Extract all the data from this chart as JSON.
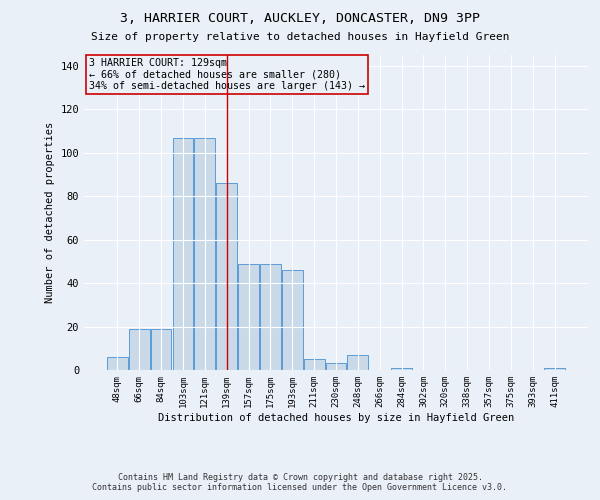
{
  "title1": "3, HARRIER COURT, AUCKLEY, DONCASTER, DN9 3PP",
  "title2": "Size of property relative to detached houses in Hayfield Green",
  "xlabel": "Distribution of detached houses by size in Hayfield Green",
  "ylabel": "Number of detached properties",
  "bar_labels": [
    "48sqm",
    "66sqm",
    "84sqm",
    "103sqm",
    "121sqm",
    "139sqm",
    "157sqm",
    "175sqm",
    "193sqm",
    "211sqm",
    "230sqm",
    "248sqm",
    "266sqm",
    "284sqm",
    "302sqm",
    "320sqm",
    "338sqm",
    "357sqm",
    "375sqm",
    "393sqm",
    "411sqm"
  ],
  "bar_values": [
    6,
    19,
    19,
    107,
    107,
    86,
    49,
    49,
    46,
    5,
    3,
    7,
    0,
    1,
    0,
    0,
    0,
    0,
    0,
    0,
    1
  ],
  "bar_color": "#c9d9e8",
  "bar_edge_color": "#5b9bd5",
  "vline_x": 5.0,
  "vline_color": "#cc0000",
  "annotation_text": "3 HARRIER COURT: 129sqm\n← 66% of detached houses are smaller (280)\n34% of semi-detached houses are larger (143) →",
  "ylim": [
    0,
    145
  ],
  "yticks": [
    0,
    20,
    40,
    60,
    80,
    100,
    120,
    140
  ],
  "background_color": "#eaf0f8",
  "grid_color": "#ffffff",
  "footer1": "Contains HM Land Registry data © Crown copyright and database right 2025.",
  "footer2": "Contains public sector information licensed under the Open Government Licence v3.0."
}
